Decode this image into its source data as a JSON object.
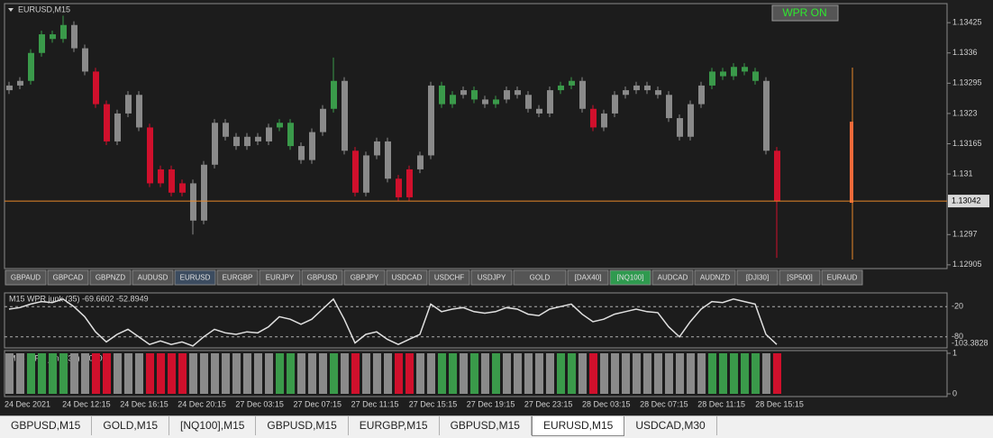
{
  "header": {
    "symbol": "EURUSD,M15",
    "button": "WPR ON"
  },
  "chart_data": {
    "type": "candlestick",
    "open": [
      1.1328,
      1.1329,
      1.133,
      1.1336,
      1.134,
      1.1339,
      1.1342,
      1.1337,
      1.1332,
      1.1325,
      1.1317,
      1.1323,
      1.1327,
      1.132,
      1.1308,
      1.1311,
      1.1306,
      1.1308,
      1.13,
      1.1312,
      1.1321,
      1.1318,
      1.1316,
      1.1318,
      1.1317,
      1.132,
      1.1321,
      1.1316,
      1.1313,
      1.1319,
      1.1324,
      1.133,
      1.1315,
      1.1306,
      1.1314,
      1.1317,
      1.1309,
      1.1305,
      1.1311,
      1.1314,
      1.1329,
      1.1325,
      1.1327,
      1.1328,
      1.1326,
      1.1325,
      1.1326,
      1.1328,
      1.1327,
      1.1324,
      1.1323,
      1.1328,
      1.1329,
      1.133,
      1.1324,
      1.132,
      1.1323,
      1.1327,
      1.1328,
      1.1329,
      1.1328,
      1.1327,
      1.1322,
      1.1318,
      1.1325,
      1.1329,
      1.1332,
      1.1331,
      1.1333,
      1.1332,
      1.133,
      1.1315
    ],
    "high": [
      1.13298,
      1.13308,
      1.13368,
      1.13408,
      1.13408,
      1.1344,
      1.13428,
      1.13378,
      1.13328,
      1.13258,
      1.13238,
      1.13278,
      1.13278,
      1.13208,
      1.13118,
      1.13118,
      1.13088,
      1.13088,
      1.13128,
      1.13218,
      1.13218,
      1.13188,
      1.13188,
      1.13188,
      1.13208,
      1.13218,
      1.13218,
      1.13168,
      1.13198,
      1.13248,
      1.1335,
      1.13308,
      1.13158,
      1.13148,
      1.13178,
      1.13178,
      1.13098,
      1.13118,
      1.13148,
      1.13298,
      1.13298,
      1.13278,
      1.13288,
      1.13288,
      1.13268,
      1.13268,
      1.13288,
      1.13288,
      1.13278,
      1.13248,
      1.13288,
      1.13298,
      1.13308,
      1.13308,
      1.13248,
      1.13238,
      1.13278,
      1.13288,
      1.13298,
      1.13298,
      1.13288,
      1.13278,
      1.13228,
      1.13258,
      1.13298,
      1.13328,
      1.13328,
      1.13338,
      1.13338,
      1.13328,
      1.13308,
      1.13158
    ],
    "low": [
      1.13272,
      1.13282,
      1.13292,
      1.13352,
      1.13382,
      1.13382,
      1.13362,
      1.13312,
      1.13242,
      1.13162,
      1.13162,
      1.13222,
      1.13192,
      1.13072,
      1.13072,
      1.13052,
      1.13052,
      1.1297,
      1.12992,
      1.13112,
      1.13172,
      1.13152,
      1.13152,
      1.13162,
      1.13162,
      1.13192,
      1.13152,
      1.13122,
      1.13122,
      1.13182,
      1.13232,
      1.13142,
      1.13052,
      1.13052,
      1.13132,
      1.13082,
      1.13042,
      1.13042,
      1.13102,
      1.13132,
      1.13242,
      1.13242,
      1.13262,
      1.13252,
      1.13242,
      1.13242,
      1.13252,
      1.13262,
      1.13232,
      1.13222,
      1.13222,
      1.13272,
      1.13282,
      1.13232,
      1.13192,
      1.13192,
      1.13222,
      1.13262,
      1.13272,
      1.13272,
      1.13262,
      1.13212,
      1.13172,
      1.13172,
      1.13242,
      1.13282,
      1.13302,
      1.13302,
      1.13312,
      1.13292,
      1.13142,
      1.1292
    ],
    "close": [
      1.1329,
      1.133,
      1.1336,
      1.134,
      1.1339,
      1.1342,
      1.1337,
      1.1332,
      1.1325,
      1.1317,
      1.1323,
      1.1327,
      1.132,
      1.1308,
      1.1311,
      1.1306,
      1.1308,
      1.13,
      1.1312,
      1.1321,
      1.1318,
      1.1316,
      1.1318,
      1.1317,
      1.132,
      1.1321,
      1.1316,
      1.1313,
      1.1319,
      1.1324,
      1.133,
      1.1315,
      1.1306,
      1.1314,
      1.1317,
      1.1309,
      1.1305,
      1.1311,
      1.1314,
      1.1329,
      1.1325,
      1.1327,
      1.1328,
      1.1326,
      1.1325,
      1.1326,
      1.1328,
      1.1327,
      1.1324,
      1.1323,
      1.1328,
      1.1329,
      1.133,
      1.1324,
      1.132,
      1.1323,
      1.1327,
      1.1328,
      1.1329,
      1.1328,
      1.1327,
      1.1322,
      1.1318,
      1.1325,
      1.1329,
      1.1332,
      1.1331,
      1.1333,
      1.1332,
      1.133,
      1.1315,
      1.13042
    ],
    "colors": [
      "#8a8a8a",
      "#8a8a8a",
      "#3a9a4a",
      "#3a9a4a",
      "#3a9a4a",
      "#3a9a4a",
      "#8a8a8a",
      "#8a8a8a",
      "#d0102c",
      "#d0102c",
      "#8a8a8a",
      "#8a8a8a",
      "#8a8a8a",
      "#d0102c",
      "#d0102c",
      "#d0102c",
      "#d0102c",
      "#8a8a8a",
      "#8a8a8a",
      "#8a8a8a",
      "#8a8a8a",
      "#8a8a8a",
      "#8a8a8a",
      "#8a8a8a",
      "#8a8a8a",
      "#3a9a4a",
      "#3a9a4a",
      "#8a8a8a",
      "#8a8a8a",
      "#8a8a8a",
      "#3a9a4a",
      "#8a8a8a",
      "#d0102c",
      "#8a8a8a",
      "#8a8a8a",
      "#8a8a8a",
      "#d0102c",
      "#d0102c",
      "#8a8a8a",
      "#8a8a8a",
      "#3a9a4a",
      "#3a9a4a",
      "#8a8a8a",
      "#3a9a4a",
      "#8a8a8a",
      "#3a9a4a",
      "#8a8a8a",
      "#8a8a8a",
      "#8a8a8a",
      "#8a8a8a",
      "#8a8a8a",
      "#3a9a4a",
      "#3a9a4a",
      "#8a8a8a",
      "#d0102c",
      "#8a8a8a",
      "#8a8a8a",
      "#8a8a8a",
      "#8a8a8a",
      "#8a8a8a",
      "#8a8a8a",
      "#8a8a8a",
      "#8a8a8a",
      "#8a8a8a",
      "#8a8a8a",
      "#3a9a4a",
      "#3a9a4a",
      "#3a9a4a",
      "#3a9a4a",
      "#3a9a4a",
      "#8a8a8a",
      "#d0102c"
    ],
    "ylim": [
      1.12897,
      1.13464
    ],
    "yticks": [
      1.13425,
      1.1336,
      1.13295,
      1.1323,
      1.13165,
      1.131,
      1.1297,
      1.12905
    ],
    "last_price": 1.13042,
    "last_price_color": "#e8892a",
    "x_labels": [
      "24 Dec 2021",
      "24 Dec 12:15",
      "24 Dec 16:15",
      "24 Dec 20:15",
      "27 Dec 03:15",
      "27 Dec 07:15",
      "27 Dec 11:15",
      "27 Dec 15:15",
      "27 Dec 19:15",
      "27 Dec 23:15",
      "28 Dec 03:15",
      "28 Dec 07:15",
      "28 Dec 11:15",
      "28 Dec 15:15"
    ],
    "wpr": {
      "title": "M15  WPR junk (35) -69.6602 -52.8949",
      "bottom_label": "-103.3828",
      "ylim": [
        -100,
        0
      ],
      "levels": [
        -20,
        -80
      ],
      "color": "#e0e0e0",
      "values": [
        -25,
        -22,
        -15,
        -10,
        -12,
        -5,
        -20,
        -40,
        -70,
        -90,
        -75,
        -65,
        -80,
        -95,
        -88,
        -95,
        -90,
        -98,
        -80,
        -65,
        -72,
        -75,
        -70,
        -72,
        -60,
        -40,
        -45,
        -55,
        -45,
        -25,
        -5,
        -45,
        -92,
        -75,
        -70,
        -85,
        -95,
        -85,
        -75,
        -15,
        -30,
        -25,
        -22,
        -30,
        -33,
        -30,
        -22,
        -25,
        -35,
        -38,
        -25,
        -20,
        -15,
        -35,
        -50,
        -45,
        -35,
        -30,
        -25,
        -30,
        -32,
        -60,
        -80,
        -50,
        -25,
        -10,
        -12,
        -5,
        -10,
        -15,
        -75,
        -95
      ]
    },
    "histogram": {
      "title": "M15  WPR junk (35) 1.0000",
      "ylim": [
        0,
        1
      ],
      "yticks": [
        1,
        0
      ],
      "values": [
        1,
        1,
        1,
        1,
        1,
        1,
        1,
        1,
        1,
        1,
        1,
        1,
        1,
        1,
        1,
        1,
        1,
        1,
        1,
        1,
        1,
        1,
        1,
        1,
        1,
        1,
        1,
        1,
        1,
        1,
        1,
        1,
        1,
        1,
        1,
        1,
        1,
        1,
        1,
        1,
        1,
        1,
        1,
        1,
        1,
        1,
        1,
        1,
        1,
        1,
        1,
        1,
        1,
        1,
        1,
        1,
        1,
        1,
        1,
        1,
        1,
        1,
        1,
        1,
        1,
        1,
        1,
        1,
        1,
        1,
        1,
        1
      ]
    }
  },
  "symbols": [
    "GBPAUD",
    "GBPCAD",
    "GBPNZD",
    "AUDUSD",
    "EURUSD",
    "EURGBP",
    "EURJPY",
    "GBPUSD",
    "GBPJPY",
    "USDCAD",
    "USDCHF",
    "USDJPY",
    "GOLD",
    "[DAX40]",
    "[NQ100]",
    "AUDCAD",
    "AUDNZD",
    "[DJI30]",
    "[SP500]",
    "EURAUD"
  ],
  "active_symbol": 4,
  "highlight_symbol": 14,
  "tabs": [
    "GBPUSD,M15",
    "GOLD,M15",
    "[NQ100],M15",
    "GBPUSD,M15",
    "EURGBP,M15",
    "GBPUSD,M15",
    "EURUSD,M15",
    "USDCAD,M30"
  ],
  "active_tab": 6
}
